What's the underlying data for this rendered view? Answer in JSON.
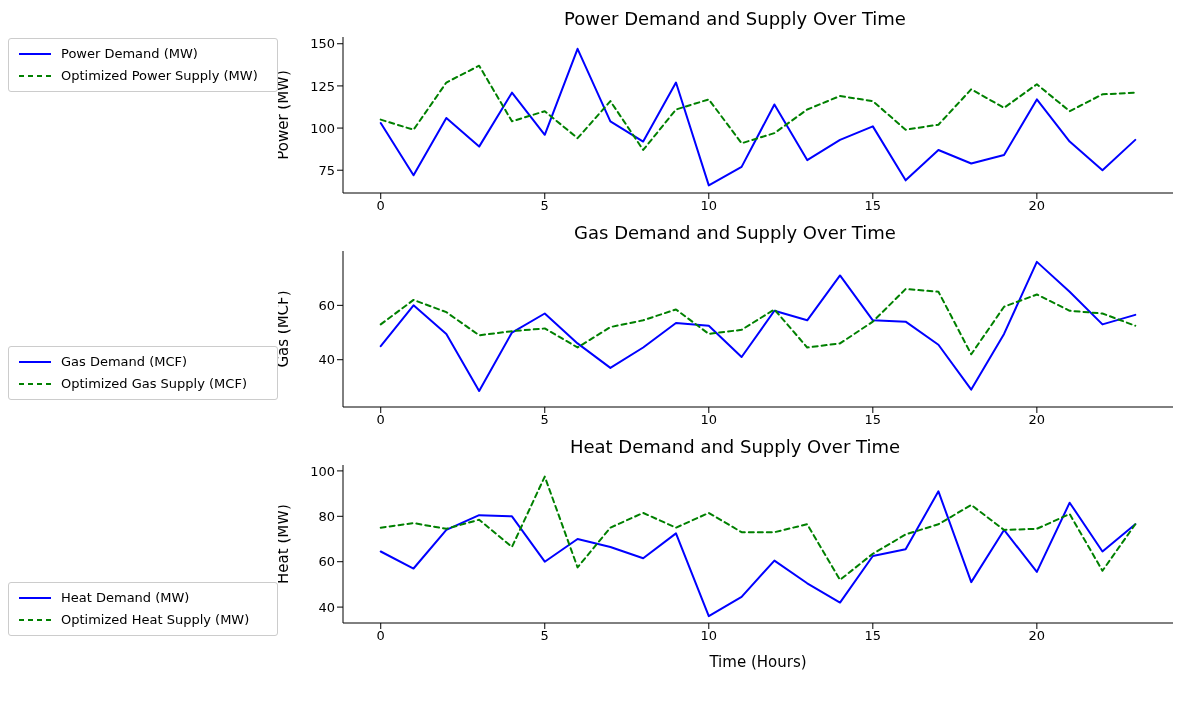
{
  "chart_data": [
    {
      "type": "line",
      "title": "Power Demand and Supply Over Time",
      "ylabel": "Power (MW)",
      "x": [
        0,
        1,
        2,
        3,
        4,
        5,
        6,
        7,
        8,
        9,
        10,
        11,
        12,
        13,
        14,
        15,
        16,
        17,
        18,
        19,
        20,
        21,
        22,
        23
      ],
      "xlim": [
        -1.15,
        24.15
      ],
      "xticks": [
        0,
        5,
        10,
        15,
        20
      ],
      "ylim": [
        61.5,
        154
      ],
      "yticks": [
        75,
        100,
        125,
        150
      ],
      "legend": "top left",
      "series": [
        {
          "name": "Power Demand (MW)",
          "color": "#0000ff",
          "line_style": "solid",
          "values": [
            103,
            72,
            106,
            89,
            121,
            96,
            147,
            104,
            92,
            127,
            66,
            77,
            114,
            81,
            93,
            101,
            69,
            87,
            79,
            84,
            117,
            92,
            75,
            93
          ]
        },
        {
          "name": "Optimized Power Supply (MW)",
          "color": "#008000",
          "line_style": "dashed",
          "values": [
            105,
            99,
            127,
            137,
            104,
            110,
            94,
            116,
            87,
            111,
            117,
            91,
            97,
            111,
            119,
            116,
            99,
            102,
            123,
            112,
            126,
            110,
            120,
            121
          ]
        }
      ]
    },
    {
      "type": "line",
      "title": "Gas Demand and Supply Over Time",
      "ylabel": "Gas (MCF)",
      "x": [
        0,
        1,
        2,
        3,
        4,
        5,
        6,
        7,
        8,
        9,
        10,
        11,
        12,
        13,
        14,
        15,
        16,
        17,
        18,
        19,
        20,
        21,
        22,
        23
      ],
      "xlim": [
        -1.15,
        24.15
      ],
      "xticks": [
        0,
        5,
        10,
        15,
        20
      ],
      "ylim": [
        22.6,
        80
      ],
      "yticks": [
        40,
        60
      ],
      "legend": "bottom left",
      "series": [
        {
          "name": "Gas Demand (MCF)",
          "color": "#0000ff",
          "line_style": "solid",
          "values": [
            45,
            60,
            49.5,
            28.5,
            50,
            57,
            46,
            37,
            44.5,
            53.5,
            52.5,
            41,
            58,
            54.5,
            71,
            54.5,
            54,
            45.5,
            29,
            49.5,
            76,
            65,
            53,
            56.5
          ]
        },
        {
          "name": "Optimized Gas Supply (MCF)",
          "color": "#008000",
          "line_style": "dashed",
          "values": [
            53,
            62,
            57.5,
            49,
            50.5,
            51.5,
            44.5,
            52,
            54.5,
            58.5,
            49.5,
            51,
            58.5,
            44.5,
            46,
            54,
            66,
            65,
            42,
            59.5,
            64,
            58,
            57,
            52.5
          ]
        }
      ]
    },
    {
      "type": "line",
      "title": "Heat Demand and Supply Over Time",
      "xlabel": "Time (Hours)",
      "ylabel": "Heat (MW)",
      "x": [
        0,
        1,
        2,
        3,
        4,
        5,
        6,
        7,
        8,
        9,
        10,
        11,
        12,
        13,
        14,
        15,
        16,
        17,
        18,
        19,
        20,
        21,
        22,
        23
      ],
      "xlim": [
        -1.15,
        24.15
      ],
      "xticks": [
        0,
        5,
        10,
        15,
        20
      ],
      "ylim": [
        33,
        102.6
      ],
      "yticks": [
        40,
        60,
        80,
        100
      ],
      "legend": "bottom left",
      "series": [
        {
          "name": "Heat Demand (MW)",
          "color": "#0000ff",
          "line_style": "solid",
          "values": [
            64.5,
            57,
            74,
            80.5,
            80,
            60,
            70,
            66.5,
            61.5,
            72.5,
            36,
            44.5,
            60.5,
            50.5,
            42,
            62.5,
            65.5,
            91,
            51,
            74,
            55.5,
            86,
            64.5,
            76.5
          ]
        },
        {
          "name": "Optimized Heat Supply (MW)",
          "color": "#008000",
          "line_style": "dashed",
          "values": [
            75,
            77,
            74.5,
            78.5,
            66.5,
            97.5,
            57.5,
            75,
            81.5,
            75,
            81.5,
            73,
            73,
            76.5,
            52,
            63.5,
            72,
            76.5,
            85,
            74,
            74.5,
            81,
            56,
            76.5
          ]
        }
      ]
    }
  ]
}
